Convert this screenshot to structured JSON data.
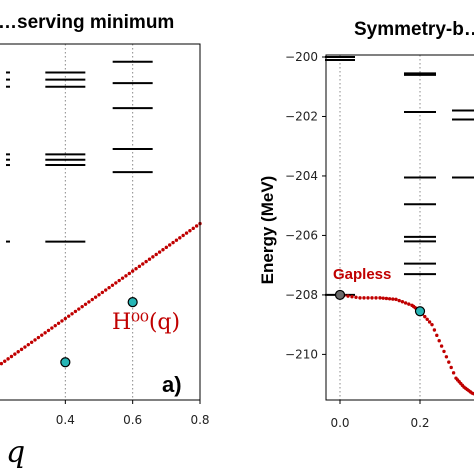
{
  "chart_data": [
    {
      "type": "scatter",
      "title": "…serving minimum",
      "xlabel": "q",
      "x_ticks": [
        "0.4",
        "0.6",
        "0.8"
      ],
      "xlim": [
        0.2,
        0.8
      ],
      "grid_x": [
        0.4,
        0.6
      ],
      "panel_label": "a)",
      "annotation": "H⁰⁰(q)",
      "levels": [
        {
          "q": 0.4,
          "y": [
            0.92,
            0.9,
            0.88,
            0.69,
            0.675,
            0.66,
            0.445
          ]
        },
        {
          "q": 0.6,
          "y": [
            0.95,
            0.89,
            0.82,
            0.705,
            0.64
          ]
        }
      ],
      "dispersion_points": [
        {
          "q": 0.4,
          "y": 0.106
        },
        {
          "q": 0.6,
          "y": 0.275
        }
      ],
      "dispersion_curve_endpoints": [
        {
          "q": 0.2,
          "y": 0.0
        },
        {
          "q": 0.8,
          "y": 0.4
        }
      ]
    },
    {
      "type": "scatter",
      "title": "Symmetry-b…",
      "ylabel": "Energy (MeV)",
      "ylim": [
        -211.5,
        -200
      ],
      "xlim": [
        -0.05,
        0.35
      ],
      "y_ticks": [
        "−200",
        "−202",
        "−204",
        "−206",
        "−208",
        "−210"
      ],
      "x_ticks": [
        "0.0",
        "0.2"
      ],
      "grid_x": [
        0.0,
        0.2
      ],
      "annotation": "Gapless",
      "levels": [
        {
          "q": 0.0,
          "y": [
            -200.0,
            -200.1,
            -208.0
          ]
        },
        {
          "q": 0.2,
          "y": [
            -200.55,
            -200.6,
            -201.85,
            -204.05,
            -204.95,
            -206.05,
            -206.2,
            -206.95,
            -207.3
          ]
        },
        {
          "q": 0.32,
          "y": [
            -201.8,
            -202.1,
            -204.05
          ]
        }
      ],
      "dispersion_points": [
        {
          "q": 0.0,
          "y": -208.0
        },
        {
          "q": 0.2,
          "y": -208.55
        }
      ],
      "dispersion_curve": [
        {
          "q": 0.0,
          "y": -208.0
        },
        {
          "q": 0.05,
          "y": -208.1
        },
        {
          "q": 0.1,
          "y": -208.1
        },
        {
          "q": 0.14,
          "y": -208.15
        },
        {
          "q": 0.18,
          "y": -208.35
        },
        {
          "q": 0.2,
          "y": -208.55
        },
        {
          "q": 0.23,
          "y": -209.0
        },
        {
          "q": 0.26,
          "y": -209.9
        },
        {
          "q": 0.29,
          "y": -210.8
        },
        {
          "q": 0.31,
          "y": -211.1
        },
        {
          "q": 0.33,
          "y": -211.3
        },
        {
          "q": 0.35,
          "y": -211.4
        }
      ]
    }
  ]
}
